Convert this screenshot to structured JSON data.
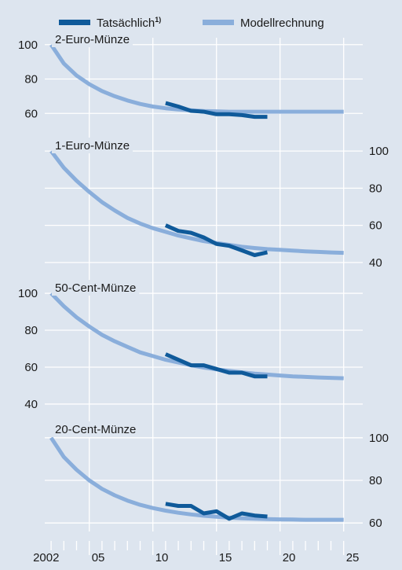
{
  "colors": {
    "background": "#dde5ef",
    "actual": "#0f5a9a",
    "model": "#8aaedb",
    "grid": "#ffffff",
    "text": "#1a1a1a"
  },
  "legend": {
    "actual_label": "Tatsächlich",
    "actual_footnote": "1)",
    "model_label": "Modellrechnung",
    "placement": "top"
  },
  "chart_data": [
    {
      "type": "line",
      "title": "2-Euro-Münze",
      "axis_side": "left",
      "yticks": [
        60,
        80,
        100
      ],
      "ylim": [
        56,
        104
      ],
      "xlim": [
        2001.5,
        2026.5
      ],
      "series": [
        {
          "name": "Modellrechnung",
          "x": [
            2002,
            2003,
            2004,
            2005,
            2006,
            2007,
            2008,
            2009,
            2010,
            2011,
            2012,
            2013,
            2014,
            2015,
            2016,
            2017,
            2018,
            2019,
            2020,
            2021,
            2022,
            2023,
            2024,
            2025
          ],
          "y": [
            100,
            89,
            82,
            77,
            73,
            70,
            67.5,
            65.5,
            64,
            63,
            62.3,
            61.8,
            61.4,
            61.2,
            61,
            61,
            61,
            61,
            61,
            61,
            61,
            61,
            61,
            61
          ]
        },
        {
          "name": "Tatsächlich",
          "x": [
            2011,
            2012,
            2013,
            2014,
            2015,
            2016,
            2017,
            2018,
            2019
          ],
          "y": [
            66,
            64,
            61.5,
            61,
            59.5,
            59.5,
            59,
            58,
            58
          ]
        }
      ]
    },
    {
      "type": "line",
      "title": "1-Euro-Münze",
      "axis_side": "right",
      "yticks": [
        40,
        60,
        80,
        100
      ],
      "ylim": [
        37,
        103
      ],
      "xlim": [
        2001.5,
        2026.5
      ],
      "series": [
        {
          "name": "Modellrechnung",
          "x": [
            2002,
            2003,
            2004,
            2005,
            2006,
            2007,
            2008,
            2009,
            2010,
            2011,
            2012,
            2013,
            2014,
            2015,
            2016,
            2017,
            2018,
            2019,
            2020,
            2021,
            2022,
            2023,
            2024,
            2025
          ],
          "y": [
            100,
            91,
            84,
            78,
            72.5,
            68,
            64,
            61,
            58.5,
            56.5,
            54.5,
            53,
            51.5,
            50.5,
            49.5,
            48.5,
            47.8,
            47.2,
            46.8,
            46.4,
            46,
            45.7,
            45.4,
            45.2
          ]
        },
        {
          "name": "Tatsächlich",
          "x": [
            2011,
            2012,
            2013,
            2014,
            2015,
            2016,
            2017,
            2018,
            2019
          ],
          "y": [
            60,
            57,
            56,
            53.5,
            50,
            49,
            46.5,
            44,
            45.5
          ]
        }
      ]
    },
    {
      "type": "line",
      "title": "50-Cent-Münze",
      "axis_side": "left",
      "yticks": [
        40,
        60,
        80,
        100
      ],
      "ylim": [
        37,
        103
      ],
      "xlim": [
        2001.5,
        2026.5
      ],
      "series": [
        {
          "name": "Modellrechnung",
          "x": [
            2002,
            2003,
            2004,
            2005,
            2006,
            2007,
            2008,
            2009,
            2010,
            2011,
            2012,
            2013,
            2014,
            2015,
            2016,
            2017,
            2018,
            2019,
            2020,
            2021,
            2022,
            2023,
            2024,
            2025
          ],
          "y": [
            100,
            93,
            87,
            82,
            77.5,
            74,
            71,
            68,
            66,
            64,
            62.5,
            61,
            59.8,
            58.8,
            58,
            57.2,
            56.5,
            56,
            55.5,
            55,
            54.7,
            54.4,
            54.2,
            54
          ]
        },
        {
          "name": "Tatsächlich",
          "x": [
            2011,
            2012,
            2013,
            2014,
            2015,
            2016,
            2017,
            2018,
            2019
          ],
          "y": [
            67,
            64,
            61,
            61,
            59,
            57,
            57,
            55,
            55
          ]
        }
      ]
    },
    {
      "type": "line",
      "title": "20-Cent-Münze",
      "axis_side": "right",
      "yticks": [
        60,
        80,
        100
      ],
      "ylim": [
        56,
        104
      ],
      "xlim": [
        2001.5,
        2026.5
      ],
      "series": [
        {
          "name": "Modellrechnung",
          "x": [
            2002,
            2003,
            2004,
            2005,
            2006,
            2007,
            2008,
            2009,
            2010,
            2011,
            2012,
            2013,
            2014,
            2015,
            2016,
            2017,
            2018,
            2019,
            2020,
            2021,
            2022,
            2023,
            2024,
            2025
          ],
          "y": [
            100,
            91,
            85,
            80,
            76,
            73,
            70.5,
            68.5,
            67,
            65.8,
            64.8,
            64,
            63.4,
            62.9,
            62.5,
            62.2,
            62,
            61.8,
            61.7,
            61.6,
            61.5,
            61.5,
            61.5,
            61.5
          ]
        },
        {
          "name": "Tatsächlich",
          "x": [
            2011,
            2012,
            2013,
            2014,
            2015,
            2016,
            2017,
            2018,
            2019
          ],
          "y": [
            69,
            68,
            68,
            64.5,
            65.5,
            62,
            64.5,
            63.5,
            63
          ]
        }
      ]
    }
  ],
  "x_axis": {
    "tick_years": [
      2002,
      2003,
      2004,
      2005,
      2006,
      2007,
      2008,
      2009,
      2010,
      2011,
      2012,
      2013,
      2014,
      2015,
      2016,
      2017,
      2018,
      2019,
      2020,
      2021,
      2022,
      2023,
      2024,
      2025
    ],
    "labeled": [
      {
        "year": 2002,
        "label": "2002"
      },
      {
        "year": 2005,
        "label": "05"
      },
      {
        "year": 2010,
        "label": "10"
      },
      {
        "year": 2015,
        "label": "15"
      },
      {
        "year": 2020,
        "label": "20"
      },
      {
        "year": 2025,
        "label": "25"
      }
    ]
  }
}
